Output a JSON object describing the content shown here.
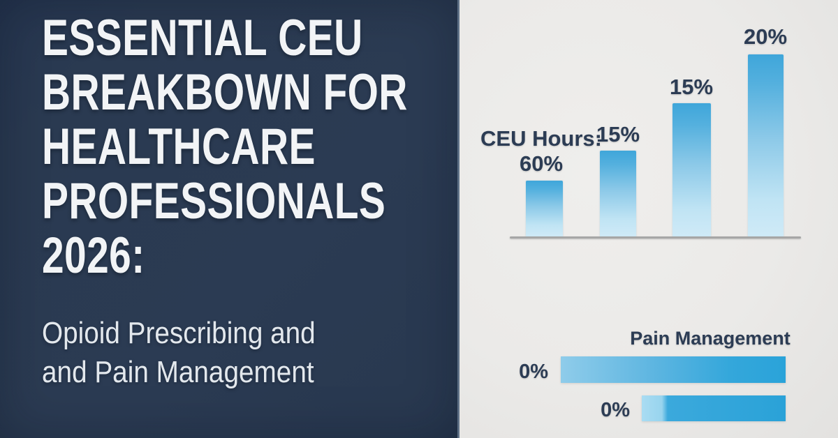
{
  "colors": {
    "navy_panel": "#2a3a51",
    "panel_gray": "#ecebe9",
    "divider": "#5d6f85",
    "title_text": "#f2f4f6",
    "subtitle_text": "#e3e8ed",
    "label_navy": "#2c3c54",
    "bar_blue_top": "#3fa6da",
    "bar_blue_bottom": "#cfeaf7",
    "hbar_blue_left": "#8fccea",
    "hbar_blue_right": "#2aa3d9",
    "baseline_gray": "#a6a6a6"
  },
  "left_panel": {
    "title_lines": [
      "ESSENTIAL CEU",
      "BREAKBOWN FOR",
      "HEALTHCARE",
      "PROFESSIONALS",
      "2026:"
    ],
    "subtitle_lines": [
      "Opioid Prescribing and",
      "and Pain Management"
    ]
  },
  "right_panel": {
    "vertical_chart": {
      "axis_label": "CEU Hours:",
      "bars": [
        {
          "label": "60%",
          "value": 60
        },
        {
          "label": "15%",
          "value": 15
        },
        {
          "label": "15%",
          "value": 15
        },
        {
          "label": "20%",
          "value": 20
        }
      ]
    },
    "horizontal_chart": {
      "title": "Pain Management",
      "bars": [
        {
          "label": "0%",
          "value": 0
        },
        {
          "label": "0%",
          "value": 0
        }
      ]
    }
  },
  "chart_data": [
    {
      "type": "bar",
      "orientation": "vertical",
      "title": "CEU Hours:",
      "categories": [
        "bar-1",
        "bar-2",
        "bar-3",
        "bar-4"
      ],
      "values": [
        60,
        15,
        15,
        20
      ],
      "value_labels": [
        "60%",
        "15%",
        "15%",
        "20%"
      ],
      "xlabel": "",
      "ylabel": "",
      "grid": false,
      "legend": false,
      "layout_note": "blue gradient bars on gray baseline; rendered bar heights increase left to right (82, 123, 191, 261 px) independent of labeled percentages"
    },
    {
      "type": "bar",
      "orientation": "horizontal",
      "title": "Pain Management",
      "categories": [
        "row-1",
        "row-2"
      ],
      "values": [
        0,
        0
      ],
      "value_labels": [
        "0%",
        "0%"
      ],
      "grid": false,
      "legend": false,
      "layout_note": "two right-aligned blue gradient bars (322 and 206 px long) with 0% labels at their left"
    }
  ]
}
